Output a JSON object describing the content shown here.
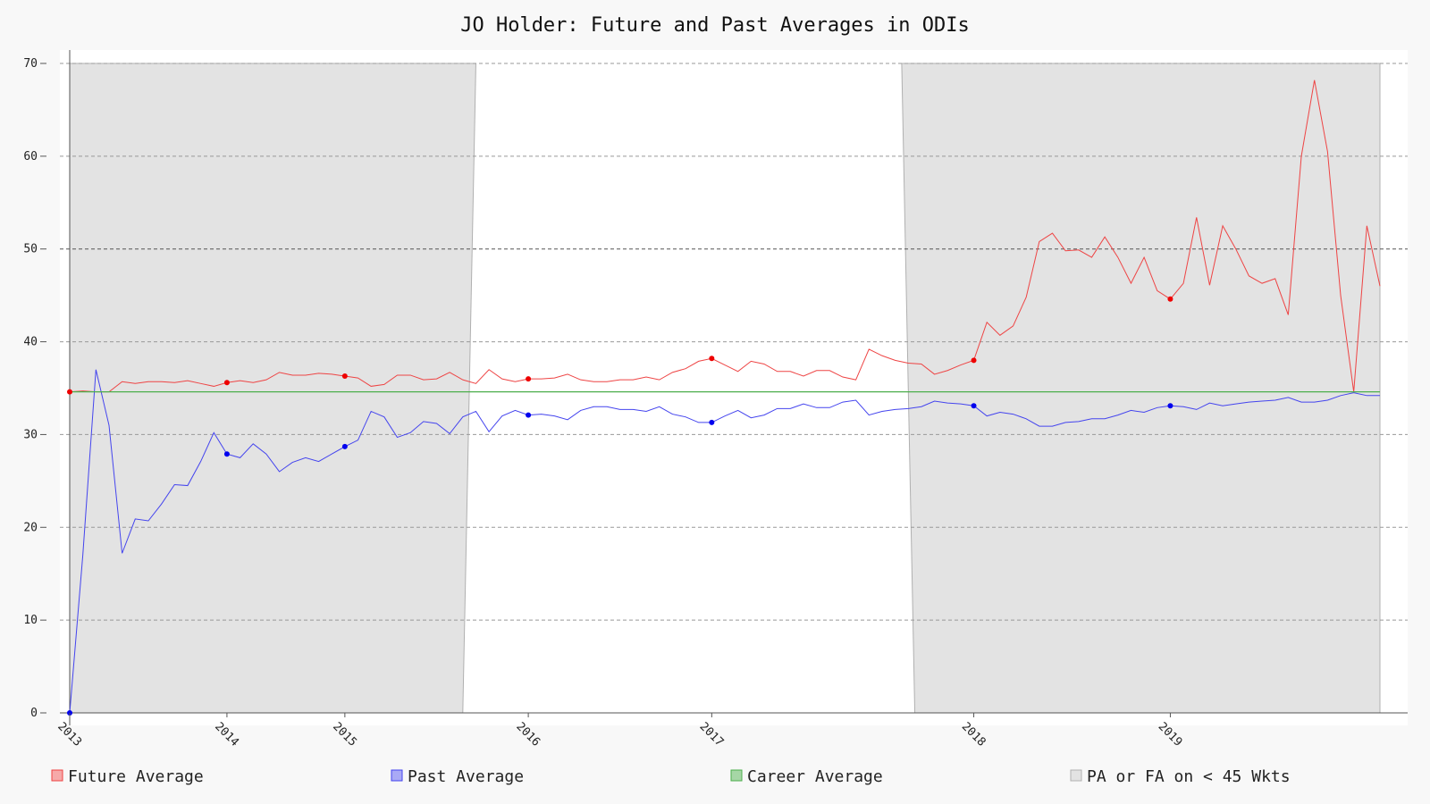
{
  "chart_data": {
    "type": "line",
    "title": "JO Holder: Future and Past Averages in ODIs",
    "xlabel": "",
    "ylabel": "",
    "ylim": [
      0,
      70
    ],
    "y_ticks": [
      0,
      10,
      20,
      30,
      40,
      50,
      60,
      70
    ],
    "x_range": [
      0,
      100
    ],
    "x_tick_labels": [
      {
        "x": 0,
        "label": "2013"
      },
      {
        "x": 12,
        "label": "2014"
      },
      {
        "x": 21,
        "label": "2015"
      },
      {
        "x": 35,
        "label": "2016"
      },
      {
        "x": 49,
        "label": "2017"
      },
      {
        "x": 69,
        "label": "2018"
      },
      {
        "x": 84,
        "label": "2019"
      }
    ],
    "grid": true,
    "legend_position": "bottom",
    "colors": {
      "future": "#ee4444",
      "past": "#4444ee",
      "career": "#4cae4c",
      "shade": "#e3e3e3",
      "shade_edge": "#b0b0b0"
    },
    "shaded_regions": [
      {
        "top_x": [
          0,
          31
        ],
        "bottom_x": [
          0,
          30
        ]
      },
      {
        "top_x": [
          63.5,
          100
        ],
        "bottom_x": [
          64.5,
          100
        ]
      }
    ],
    "series": [
      {
        "name": "Future Average",
        "key": "future",
        "values": [
          34.6,
          34.7,
          34.6,
          34.6,
          35.7,
          35.5,
          35.7,
          35.7,
          35.6,
          35.8,
          35.5,
          35.2,
          35.6,
          35.8,
          35.6,
          35.9,
          36.7,
          36.4,
          36.4,
          36.6,
          36.5,
          36.3,
          36.1,
          35.2,
          35.4,
          36.4,
          36.4,
          35.9,
          36.0,
          36.7,
          35.9,
          35.5,
          37.0,
          36.0,
          35.7,
          36.0,
          36.0,
          36.1,
          36.5,
          35.9,
          35.7,
          35.7,
          35.9,
          35.9,
          36.2,
          35.9,
          36.7,
          37.1,
          37.9,
          38.2,
          37.5,
          36.8,
          37.9,
          37.6,
          36.8,
          36.8,
          36.3,
          36.9,
          36.9,
          36.2,
          35.9,
          39.2,
          38.5,
          38.0,
          37.7,
          37.6,
          36.5,
          36.9,
          37.5,
          38.0,
          42.1,
          40.7,
          41.7,
          44.8,
          50.8,
          51.7,
          49.8,
          49.9,
          49.1,
          51.3,
          49.1,
          46.3,
          49.1,
          45.5,
          44.6,
          46.3,
          53.4,
          46.1,
          52.5,
          50.0,
          47.1,
          46.3,
          46.8,
          42.9,
          60.0,
          68.2,
          60.5,
          45.0,
          34.6,
          52.5,
          46.0
        ],
        "markers": [
          0,
          12,
          21,
          35,
          49,
          69,
          84
        ]
      },
      {
        "name": "Past Average",
        "key": "past",
        "values": [
          0.0,
          17.0,
          37.0,
          31.0,
          17.2,
          20.9,
          20.7,
          22.5,
          24.6,
          24.5,
          27.1,
          30.2,
          27.9,
          27.5,
          29.0,
          27.9,
          26.0,
          27.0,
          27.5,
          27.1,
          27.9,
          28.7,
          29.4,
          32.5,
          31.9,
          29.7,
          30.2,
          31.4,
          31.2,
          30.1,
          31.9,
          32.5,
          30.3,
          32.0,
          32.6,
          32.1,
          32.2,
          32.0,
          31.6,
          32.6,
          33.0,
          33.0,
          32.7,
          32.7,
          32.5,
          33.0,
          32.2,
          31.9,
          31.3,
          31.3,
          32.0,
          32.6,
          31.8,
          32.1,
          32.8,
          32.8,
          33.3,
          32.9,
          32.9,
          33.5,
          33.7,
          32.1,
          32.5,
          32.7,
          32.8,
          33.0,
          33.6,
          33.4,
          33.3,
          33.1,
          32.0,
          32.4,
          32.2,
          31.7,
          30.9,
          30.9,
          31.3,
          31.4,
          31.7,
          31.7,
          32.1,
          32.6,
          32.4,
          32.9,
          33.1,
          33.0,
          32.7,
          33.4,
          33.1,
          33.3,
          33.5,
          33.6,
          33.7,
          34.0,
          33.5,
          33.5,
          33.7,
          34.2,
          34.5,
          34.2,
          34.2
        ],
        "markers": [
          0,
          12,
          21,
          35,
          49,
          69,
          84
        ]
      },
      {
        "name": "Career Average",
        "key": "career",
        "values": [
          34.6,
          34.6
        ],
        "x": [
          0,
          100
        ]
      }
    ],
    "legend": [
      {
        "label": "Future Average",
        "key": "future"
      },
      {
        "label": "Past Average",
        "key": "past"
      },
      {
        "label": "Career Average",
        "key": "career"
      },
      {
        "label": "PA or FA on < 45 Wkts",
        "key": "shade"
      }
    ]
  }
}
